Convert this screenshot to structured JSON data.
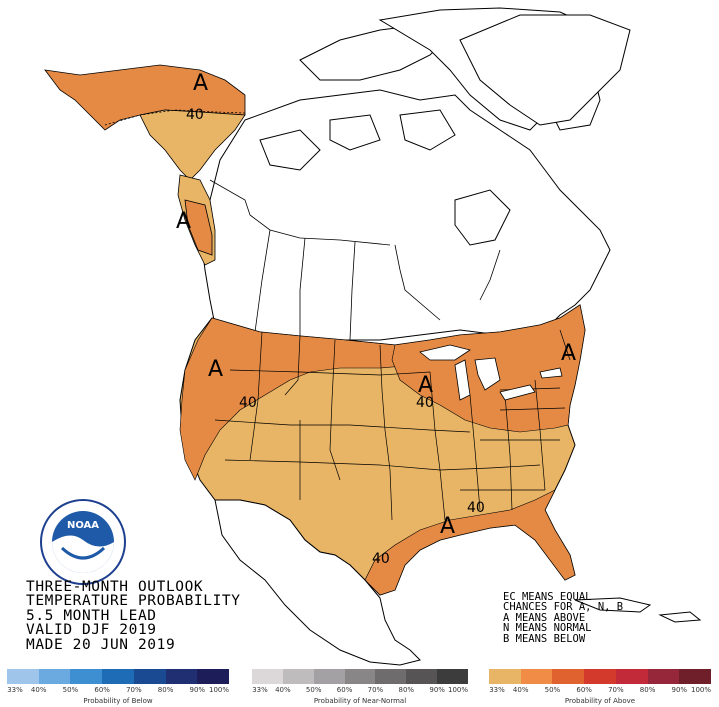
{
  "title_lines": [
    "THREE-MONTH OUTLOOK",
    "TEMPERATURE PROBABILITY",
    "5.5 MONTH LEAD",
    "VALID DJF 2019",
    "MADE 20 JUN 2019"
  ],
  "legend_lines": [
    "EC MEANS EQUAL",
    "CHANCES FOR A, N, B",
    "A MEANS ABOVE",
    "N MEANS NORMAL",
    "B MEANS BELOW"
  ],
  "map_labels": {
    "alaska_a": "A",
    "alaska_40": "40",
    "se_alaska_a": "A",
    "west_a": "A",
    "west_40": "40",
    "midwest_a": "A",
    "midwest_40": "40",
    "northeast_a": "A",
    "south_a": "A",
    "south_40": "40",
    "gulf_40": "40"
  },
  "colors": {
    "prob_33_40": "#e8b465",
    "prob_40_50": "#e48a45",
    "water": "#ffffff",
    "border": "#000000"
  },
  "scale_below": {
    "caption": "Probability of Below",
    "ticks": [
      "33%",
      "40%",
      "50%",
      "60%",
      "70%",
      "80%",
      "90%",
      "100%"
    ],
    "colors": [
      "#9fc6ea",
      "#6baae0",
      "#3d8fd2",
      "#1e6cb6",
      "#1a4a92",
      "#1f2f72",
      "#1d1d5a"
    ]
  },
  "scale_normal": {
    "caption": "Probability of Near-Normal",
    "ticks": [
      "33%",
      "40%",
      "50%",
      "60%",
      "70%",
      "80%",
      "90%",
      "100%"
    ],
    "colors": [
      "#dcd8da",
      "#bfbcbe",
      "#a3a1a3",
      "#888687",
      "#6e6c6d",
      "#565455",
      "#3d3c3d"
    ]
  },
  "scale_above": {
    "caption": "Probability of Above",
    "ticks": [
      "33%",
      "40%",
      "50%",
      "60%",
      "70%",
      "80%",
      "90%",
      "100%"
    ],
    "colors": [
      "#e8b465",
      "#f08c45",
      "#e0622e",
      "#d43a2c",
      "#c22a3a",
      "#96263a",
      "#6f1f2a"
    ]
  },
  "logo": {
    "text": "NOAA",
    "ring_text": "NATIONAL OCEANIC AND ATMOSPHERIC ADMINISTRATION",
    "ring_text_bottom": "U.S. DEPARTMENT OF COMMERCE"
  }
}
